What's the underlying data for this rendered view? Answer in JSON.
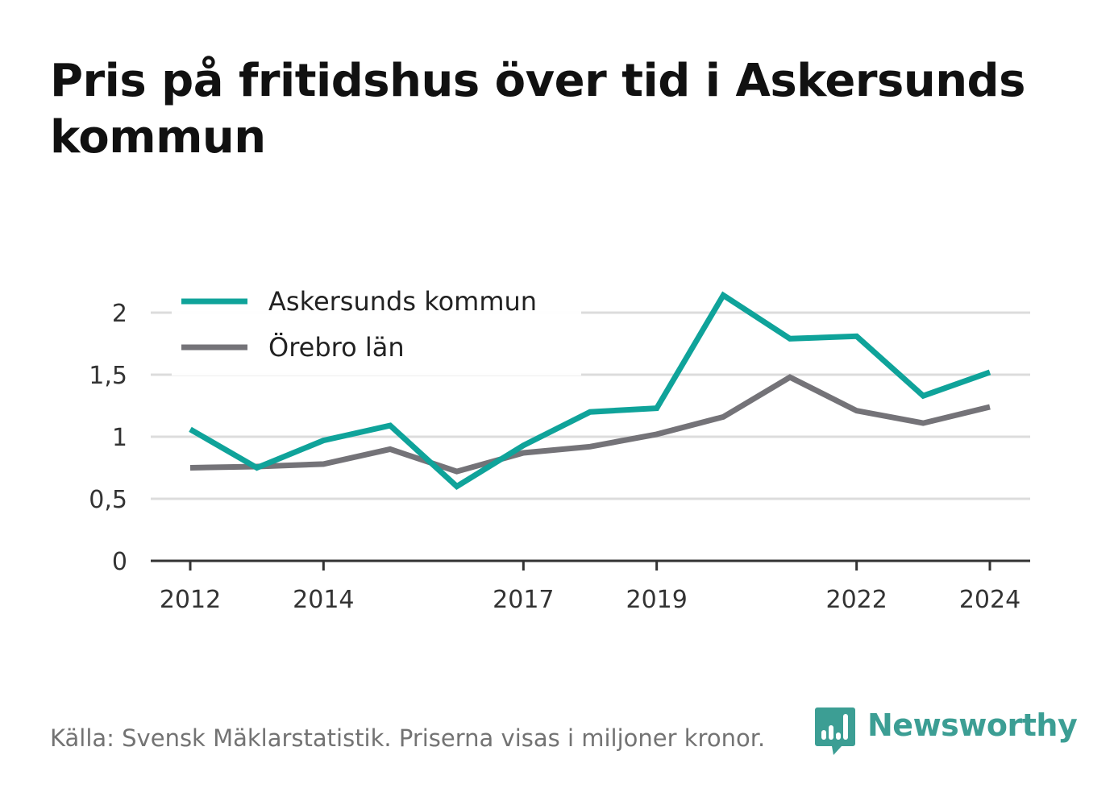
{
  "title": "Pris på fritidshus över tid i Askersunds kommun",
  "footer": {
    "source": "Källa: Svensk Mäklarstatistik. Priserna visas i miljoner kronor."
  },
  "brand": {
    "name": "Newsworthy",
    "icon": "bar-chart-speech-bubble-icon",
    "color": "#3c9e94"
  },
  "chart_data": {
    "type": "line",
    "title": "",
    "xlabel": "",
    "ylabel": "",
    "x": [
      2012,
      2013,
      2014,
      2015,
      2016,
      2017,
      2018,
      2019,
      2020,
      2021,
      2022,
      2023,
      2024
    ],
    "xticks": [
      2012,
      2014,
      2017,
      2019,
      2022,
      2024
    ],
    "yticks": [
      0,
      0.5,
      1,
      1.5,
      2
    ],
    "ytick_labels": [
      "0",
      "0,5",
      "1",
      "1,5",
      "2"
    ],
    "ylim": [
      0,
      2.2
    ],
    "grid": "horizontal",
    "legend_position": "top-left",
    "series": [
      {
        "name": "Askersunds kommun",
        "color": "#0fa39a",
        "values": [
          1.06,
          0.75,
          0.97,
          1.09,
          0.6,
          0.93,
          1.2,
          1.23,
          2.14,
          1.79,
          1.81,
          1.33,
          1.52
        ]
      },
      {
        "name": "Örebro län",
        "color": "#747378",
        "values": [
          0.75,
          0.76,
          0.78,
          0.9,
          0.72,
          0.87,
          0.92,
          1.02,
          1.16,
          1.48,
          1.21,
          1.11,
          1.24
        ]
      }
    ]
  }
}
